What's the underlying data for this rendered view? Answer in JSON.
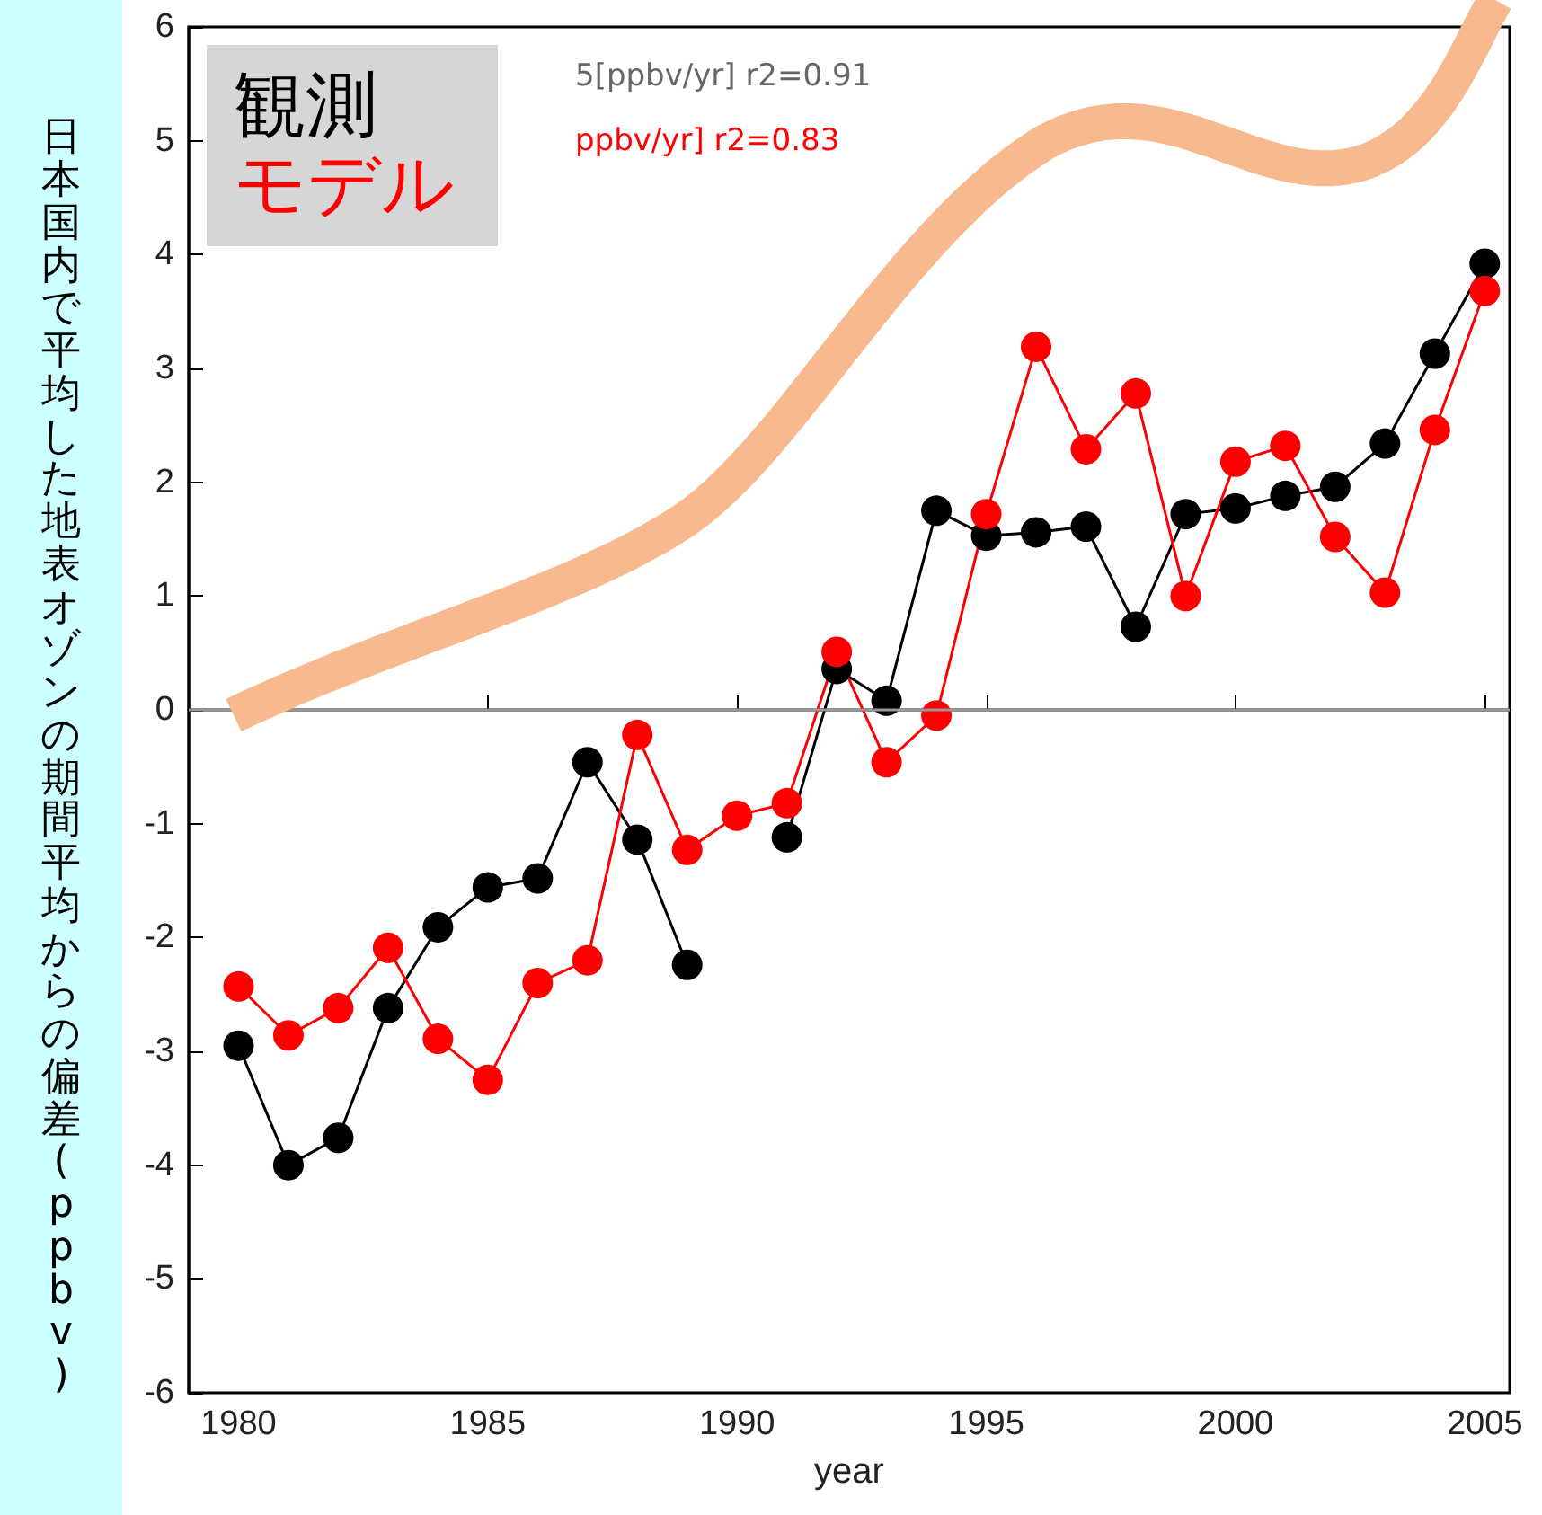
{
  "chart_data": {
    "type": "line",
    "xlabel": "year",
    "ylabel": "日本国内で平均した地表オゾンの期間平均からの偏差(ppbv)",
    "x": [
      1980,
      1981,
      1982,
      1983,
      1984,
      1985,
      1986,
      1987,
      1988,
      1989,
      1990,
      1991,
      1992,
      1993,
      1994,
      1995,
      1996,
      1997,
      1998,
      1999,
      2000,
      2001,
      2002,
      2003,
      2004,
      2005
    ],
    "series": [
      {
        "name": "観測",
        "color": "#000000",
        "values": [
          -2.95,
          -4.0,
          -3.76,
          -2.62,
          -1.91,
          -1.56,
          -1.48,
          -0.46,
          -1.14,
          -2.24,
          null,
          -1.12,
          0.36,
          0.08,
          1.75,
          1.53,
          1.56,
          1.61,
          0.73,
          1.72,
          1.77,
          1.88,
          1.96,
          2.34,
          3.13,
          3.92
        ]
      },
      {
        "name": "モデル",
        "color": "#ff0000",
        "values": [
          -2.43,
          -2.86,
          -2.62,
          -2.09,
          -2.89,
          -3.25,
          -2.4,
          -2.2,
          -0.22,
          -1.23,
          -0.93,
          -0.82,
          0.51,
          -0.46,
          -0.05,
          1.72,
          3.19,
          2.29,
          2.78,
          1.0,
          2.18,
          2.32,
          1.52,
          1.03,
          2.46,
          3.68
        ]
      }
    ],
    "annotations": [
      "5[ppbv/yr] r2=0.91",
      "ppbv/yr] r2=0.83"
    ],
    "xlim": [
      1979,
      2005.5
    ],
    "xticks": [
      1980,
      1985,
      1990,
      1995,
      2000,
      2005
    ],
    "ylim": [
      -6,
      6
    ],
    "yticks": [
      -6,
      -5,
      -4,
      -3,
      -2,
      -1,
      0,
      1,
      2,
      3,
      4,
      5,
      6
    ],
    "ref_lines": [
      {
        "axis": "y",
        "value": 0,
        "color": "#999999"
      }
    ],
    "legend": "top left",
    "marker": "circle",
    "line_style": "solid",
    "grid": false
  }
}
